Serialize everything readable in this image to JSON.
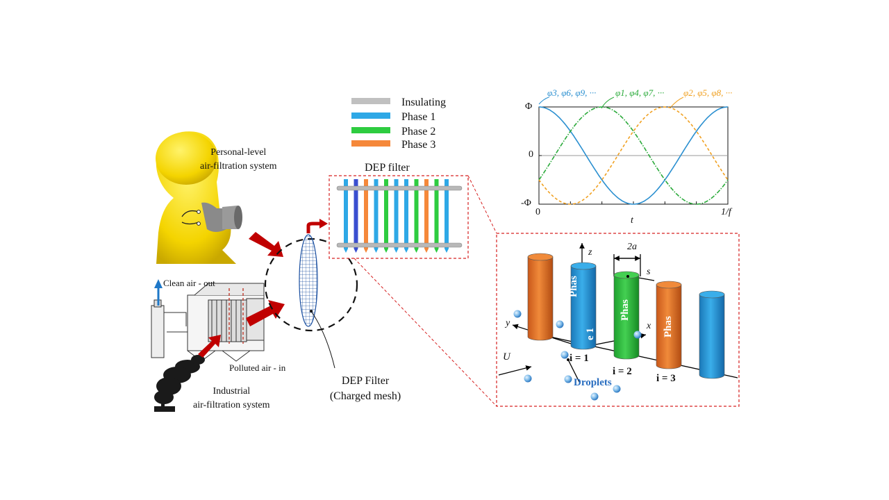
{
  "legend": {
    "items": [
      {
        "label": "Insulating",
        "color": "#c0c0c0"
      },
      {
        "label": "Phase 1",
        "color": "#2ea8e6"
      },
      {
        "label": "Phase 2",
        "color": "#2ecc40"
      },
      {
        "label": "Phase 3",
        "color": "#f5883a"
      }
    ]
  },
  "labels": {
    "personal_line1": "Personal-level",
    "personal_line2": "air-filtration  system",
    "industrial_line1": "Industrial",
    "industrial_line2": "air-filtration  system",
    "clean_air": "Clean air - out",
    "polluted_air": "Polluted  air - in",
    "dep_filter_caption_line1": "DEP Filter",
    "dep_filter_caption_line2": "(Charged mesh)",
    "dep_filter_title": "DEP filter"
  },
  "waveform": {
    "y_ticks": [
      "Φ",
      "0",
      "-Φ"
    ],
    "x_start": "0",
    "x_end": "1/f",
    "xlabel": "t",
    "series_labels": [
      {
        "text": "φ3, φ6, φ9, ···",
        "color": "#2a8fd0"
      },
      {
        "text": "φ1, φ4, φ7, ···",
        "color": "#2aaa3a"
      },
      {
        "text": "φ2, φ5, φ8, ···",
        "color": "#f0a020"
      }
    ],
    "colors": {
      "blue": "#2a8fd0",
      "green": "#2aaa3a",
      "orange": "#f0a020",
      "zero": "#999999"
    }
  },
  "schematic": {
    "z": "z",
    "y": "y",
    "x": "x",
    "U": "U",
    "two_a": "2a",
    "s": "s",
    "i1": "i = 1",
    "i2": "i = 2",
    "i3": "i = 3",
    "phase_text": "Phas",
    "phase_e1": "e 1",
    "droplets": "Droplets"
  },
  "filter_rods": [
    "#2ea8e6",
    "#3a4fd0",
    "#f5883a",
    "#2ea8e6",
    "#2ecc40",
    "#2ea8e6",
    "#2ea8e6",
    "#2ecc40",
    "#f5883a",
    "#2ecc40",
    "#2ea8e6"
  ]
}
